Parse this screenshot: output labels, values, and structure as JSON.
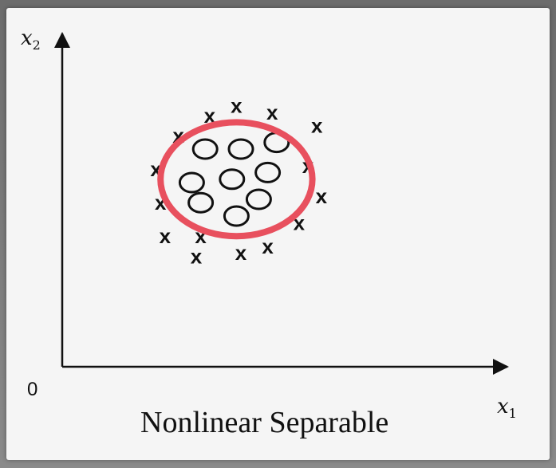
{
  "labels": {
    "y_axis_var": "x",
    "y_axis_sub": "2",
    "x_axis_var": "x",
    "x_axis_sub": "1",
    "origin": "0",
    "caption": "Nonlinear Separable"
  },
  "colors": {
    "boundary": "#e8505e",
    "marker": "#111111",
    "axis": "#111111"
  },
  "icon": "x",
  "chart_data": {
    "type": "scatter",
    "title": "",
    "xlabel": "x1",
    "ylabel": "x2",
    "xlim": [
      0,
      10
    ],
    "ylim": [
      0,
      10
    ],
    "grid": false,
    "series": [
      {
        "marker": "x",
        "points": [
          [
            3.9,
            7.8
          ],
          [
            3.3,
            7.5
          ],
          [
            4.7,
            7.6
          ],
          [
            2.6,
            6.9
          ],
          [
            5.7,
            7.2
          ],
          [
            2.1,
            5.9
          ],
          [
            5.5,
            6.0
          ],
          [
            5.8,
            5.1
          ],
          [
            2.2,
            4.9
          ],
          [
            5.3,
            4.3
          ],
          [
            2.3,
            3.9
          ],
          [
            3.1,
            3.9
          ],
          [
            4.0,
            3.4
          ],
          [
            4.6,
            3.6
          ],
          [
            3.0,
            3.3
          ]
        ]
      },
      {
        "marker": "o",
        "points": [
          [
            3.2,
            6.5
          ],
          [
            4.0,
            6.5
          ],
          [
            4.8,
            6.7
          ],
          [
            2.9,
            5.5
          ],
          [
            3.8,
            5.6
          ],
          [
            4.6,
            5.8
          ],
          [
            3.1,
            4.9
          ],
          [
            4.4,
            5.0
          ],
          [
            3.9,
            4.5
          ]
        ]
      }
    ],
    "boundary": {
      "shape": "circle",
      "center": [
        3.9,
        5.6
      ],
      "radius": 1.7
    }
  }
}
